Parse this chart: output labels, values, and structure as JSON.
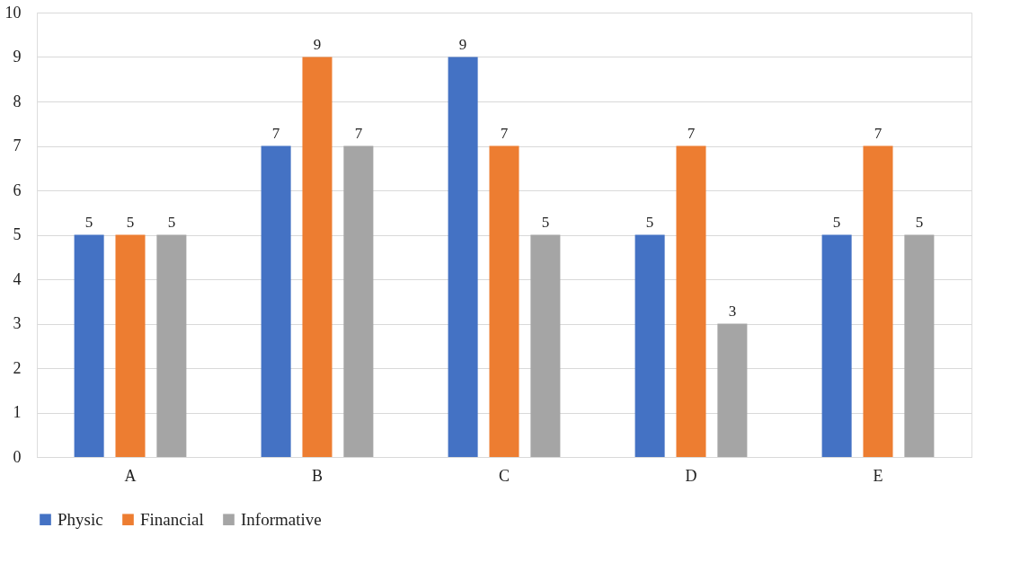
{
  "chart_data": {
    "type": "bar",
    "categories": [
      "A",
      "B",
      "C",
      "D",
      "E"
    ],
    "series": [
      {
        "name": "Physic",
        "color": "#4472c4",
        "values": [
          5,
          7,
          9,
          5,
          5
        ]
      },
      {
        "name": "Financial",
        "color": "#ed7d31",
        "values": [
          5,
          9,
          7,
          7,
          7
        ]
      },
      {
        "name": "Informative",
        "color": "#a5a5a5",
        "values": [
          5,
          7,
          5,
          3,
          5
        ]
      }
    ],
    "ylim": [
      0,
      10
    ],
    "yticks": [
      0,
      1,
      2,
      3,
      4,
      5,
      6,
      7,
      8,
      9,
      10
    ],
    "grid": "y",
    "legend": "bottom",
    "data_labels": true
  }
}
